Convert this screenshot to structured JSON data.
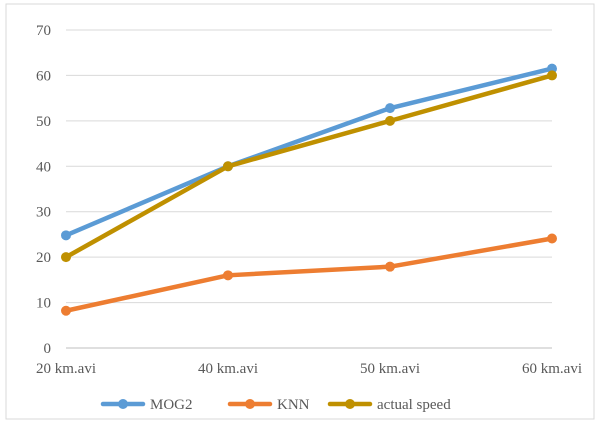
{
  "chart_data": {
    "type": "line",
    "categories": [
      "20 km.avi",
      "40 km.avi",
      "50 km.avi",
      "60 km.avi"
    ],
    "series": [
      {
        "name": "MOG2",
        "color": "#5B9BD5",
        "values": [
          24.8,
          40.0,
          52.8,
          61.5
        ]
      },
      {
        "name": "KNN",
        "color": "#ED7D31",
        "values": [
          8.2,
          16.0,
          17.9,
          24.1
        ]
      },
      {
        "name": "actual speed",
        "color": "#BF9000",
        "values": [
          20,
          40,
          50,
          60
        ]
      }
    ],
    "ylim": [
      0,
      70
    ],
    "yticks": [
      0,
      10,
      20,
      30,
      40,
      50,
      60,
      70
    ],
    "grid": "horizontal",
    "legend_position": "bottom"
  }
}
